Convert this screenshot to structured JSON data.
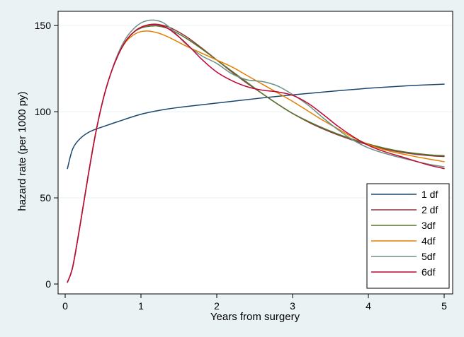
{
  "chart_data": {
    "type": "line",
    "title": "",
    "xlabel": "Years from surgery",
    "ylabel": "hazard rate (per 1000 py)",
    "xlim": [
      0,
      5
    ],
    "ylim": [
      0,
      157
    ],
    "x_ticks": [
      0,
      1,
      2,
      3,
      4,
      5
    ],
    "y_ticks": [
      0,
      50,
      100,
      150
    ],
    "grid": "horizontal",
    "legend_position": "bottom-right",
    "background": "#eaf2f3",
    "plot_background": "#ffffff",
    "series": [
      {
        "name": "1 df",
        "color": "#1a476f",
        "x": [
          0.03,
          0.1,
          0.2,
          0.3,
          0.4,
          0.5,
          0.7,
          1.0,
          1.3,
          1.6,
          2.0,
          2.5,
          3.0,
          3.5,
          4.0,
          4.5,
          5.0
        ],
        "y": [
          67,
          78.5,
          84.5,
          87.8,
          89.8,
          91.3,
          94.3,
          98.5,
          101.2,
          103,
          105,
          107.5,
          109.8,
          111.8,
          113.6,
          115,
          116
        ]
      },
      {
        "name": "2 df",
        "color": "#90353b",
        "x": [
          0.03,
          0.1,
          0.2,
          0.3,
          0.4,
          0.5,
          0.6,
          0.7,
          0.8,
          0.9,
          1.0,
          1.1,
          1.2,
          1.3,
          1.4,
          1.6,
          1.8,
          2.0,
          2.2,
          2.4,
          2.6,
          2.8,
          3.0,
          3.3,
          3.6,
          3.9,
          4.2,
          4.5,
          4.8,
          5.0
        ],
        "y": [
          1,
          10,
          35,
          62,
          87,
          107,
          122,
          133,
          141,
          146,
          149,
          150.5,
          150.8,
          150,
          148.5,
          143.5,
          137,
          130,
          123,
          116.5,
          110.5,
          104.5,
          99,
          92,
          86.5,
          82,
          78.5,
          76,
          74.5,
          74
        ]
      },
      {
        "name": "3df",
        "color": "#55752f",
        "x": [
          0.03,
          0.1,
          0.2,
          0.3,
          0.4,
          0.5,
          0.6,
          0.7,
          0.8,
          0.9,
          1.0,
          1.1,
          1.2,
          1.3,
          1.4,
          1.6,
          1.8,
          2.0,
          2.2,
          2.4,
          2.6,
          2.8,
          3.0,
          3.3,
          3.6,
          3.9,
          4.2,
          4.5,
          4.8,
          5.0
        ],
        "y": [
          1,
          10,
          35,
          62,
          87,
          107,
          122,
          133,
          141,
          146,
          148.5,
          149.5,
          149.8,
          149,
          147.5,
          142.5,
          136.5,
          130,
          123.5,
          117,
          110.5,
          104.5,
          99,
          92.5,
          87,
          82.5,
          79,
          76.5,
          75,
          74.5
        ]
      },
      {
        "name": "4df",
        "color": "#e37e00",
        "x": [
          0.03,
          0.1,
          0.2,
          0.3,
          0.4,
          0.5,
          0.6,
          0.7,
          0.8,
          0.9,
          1.0,
          1.1,
          1.2,
          1.3,
          1.4,
          1.6,
          1.8,
          2.0,
          2.2,
          2.4,
          2.6,
          2.8,
          3.0,
          3.2,
          3.4,
          3.6,
          3.8,
          4.0,
          4.2,
          4.5,
          4.8,
          5.0
        ],
        "y": [
          1,
          10,
          35,
          62,
          87,
          107,
          122,
          133,
          140.5,
          144.5,
          146.5,
          146.8,
          146,
          144.5,
          142.5,
          138,
          134,
          130,
          126,
          121,
          116,
          111,
          106,
          100.5,
          95,
          90,
          85,
          81,
          78,
          75,
          72.5,
          71
        ]
      },
      {
        "name": "5df",
        "color": "#6e8e84",
        "x": [
          0.03,
          0.1,
          0.2,
          0.3,
          0.4,
          0.5,
          0.6,
          0.7,
          0.8,
          0.9,
          1.0,
          1.1,
          1.2,
          1.3,
          1.4,
          1.5,
          1.6,
          1.8,
          2.0,
          2.2,
          2.4,
          2.6,
          2.8,
          3.0,
          3.2,
          3.4,
          3.6,
          3.8,
          4.0,
          4.2,
          4.5,
          4.8,
          5.0
        ],
        "y": [
          1,
          10,
          35,
          62,
          87,
          107,
          122,
          134,
          142.5,
          148,
          151.5,
          153,
          153,
          151.5,
          148,
          143.5,
          139,
          132.5,
          128,
          122,
          118.5,
          117.5,
          115,
          110,
          104,
          96.5,
          89.5,
          83.5,
          79,
          76,
          72.5,
          69.5,
          68
        ]
      },
      {
        "name": "6df",
        "color": "#c10534",
        "x": [
          0.03,
          0.1,
          0.2,
          0.3,
          0.4,
          0.5,
          0.6,
          0.7,
          0.8,
          0.9,
          1.0,
          1.1,
          1.2,
          1.3,
          1.4,
          1.6,
          1.8,
          2.0,
          2.2,
          2.4,
          2.6,
          2.8,
          3.0,
          3.2,
          3.4,
          3.6,
          3.8,
          4.0,
          4.2,
          4.5,
          4.8,
          5.0
        ],
        "y": [
          1,
          10,
          35,
          62,
          87,
          107,
          122,
          133,
          141,
          146,
          149,
          150.2,
          150.5,
          149.5,
          147,
          139.5,
          130.5,
          123,
          118,
          114.5,
          112.5,
          111.5,
          109.5,
          105,
          98.5,
          91.5,
          85.5,
          80.5,
          77,
          73,
          69,
          67
        ]
      }
    ]
  }
}
